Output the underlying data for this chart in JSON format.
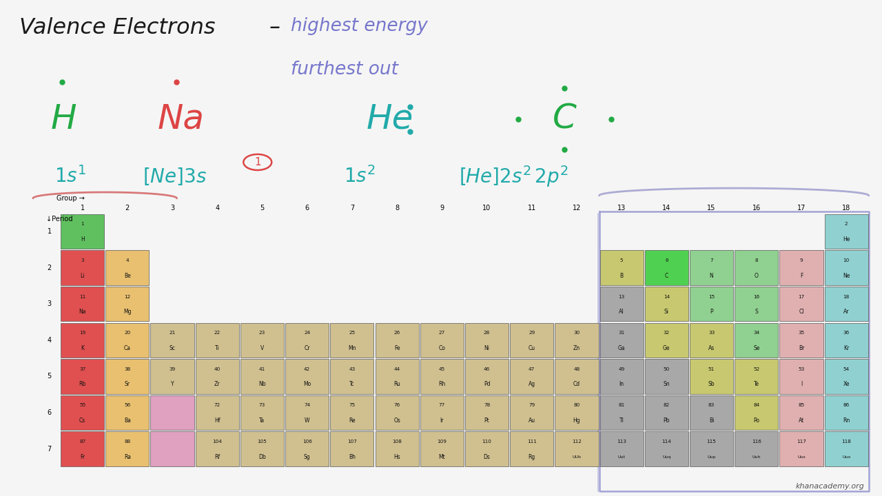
{
  "background_color": "#f5f5f5",
  "colors": {
    "alkali": "#e05050",
    "alkaline": "#e8c070",
    "transition": "#d0c090",
    "post_transition": "#a8a8a8",
    "metalloid": "#c8c870",
    "nonmetal": "#90d090",
    "halogen": "#e0b0b0",
    "noble": "#90d0d0",
    "highlighted_C": "#50d050",
    "highlighted_H": "#60c060",
    "pink_block": "#e0a0c0"
  },
  "elements": [
    {
      "num": 1,
      "sym": "H",
      "group": 1,
      "period": 1,
      "color": "highlighted_H"
    },
    {
      "num": 2,
      "sym": "He",
      "group": 18,
      "period": 1,
      "color": "noble"
    },
    {
      "num": 3,
      "sym": "Li",
      "group": 1,
      "period": 2,
      "color": "alkali"
    },
    {
      "num": 4,
      "sym": "Be",
      "group": 2,
      "period": 2,
      "color": "alkaline"
    },
    {
      "num": 5,
      "sym": "B",
      "group": 13,
      "period": 2,
      "color": "metalloid"
    },
    {
      "num": 6,
      "sym": "C",
      "group": 14,
      "period": 2,
      "color": "highlighted_C"
    },
    {
      "num": 7,
      "sym": "N",
      "group": 15,
      "period": 2,
      "color": "nonmetal"
    },
    {
      "num": 8,
      "sym": "O",
      "group": 16,
      "period": 2,
      "color": "nonmetal"
    },
    {
      "num": 9,
      "sym": "F",
      "group": 17,
      "period": 2,
      "color": "halogen"
    },
    {
      "num": 10,
      "sym": "Ne",
      "group": 18,
      "period": 2,
      "color": "noble"
    },
    {
      "num": 11,
      "sym": "Na",
      "group": 1,
      "period": 3,
      "color": "alkali"
    },
    {
      "num": 12,
      "sym": "Mg",
      "group": 2,
      "period": 3,
      "color": "alkaline"
    },
    {
      "num": 13,
      "sym": "Al",
      "group": 13,
      "period": 3,
      "color": "post_transition"
    },
    {
      "num": 14,
      "sym": "Si",
      "group": 14,
      "period": 3,
      "color": "metalloid"
    },
    {
      "num": 15,
      "sym": "P",
      "group": 15,
      "period": 3,
      "color": "nonmetal"
    },
    {
      "num": 16,
      "sym": "S",
      "group": 16,
      "period": 3,
      "color": "nonmetal"
    },
    {
      "num": 17,
      "sym": "Cl",
      "group": 17,
      "period": 3,
      "color": "halogen"
    },
    {
      "num": 18,
      "sym": "Ar",
      "group": 18,
      "period": 3,
      "color": "noble"
    },
    {
      "num": 19,
      "sym": "K",
      "group": 1,
      "period": 4,
      "color": "alkali"
    },
    {
      "num": 20,
      "sym": "Ca",
      "group": 2,
      "period": 4,
      "color": "alkaline"
    },
    {
      "num": 21,
      "sym": "Sc",
      "group": 3,
      "period": 4,
      "color": "transition"
    },
    {
      "num": 22,
      "sym": "Ti",
      "group": 4,
      "period": 4,
      "color": "transition"
    },
    {
      "num": 23,
      "sym": "V",
      "group": 5,
      "period": 4,
      "color": "transition"
    },
    {
      "num": 24,
      "sym": "Cr",
      "group": 6,
      "period": 4,
      "color": "transition"
    },
    {
      "num": 25,
      "sym": "Mn",
      "group": 7,
      "period": 4,
      "color": "transition"
    },
    {
      "num": 26,
      "sym": "Fe",
      "group": 8,
      "period": 4,
      "color": "transition"
    },
    {
      "num": 27,
      "sym": "Co",
      "group": 9,
      "period": 4,
      "color": "transition"
    },
    {
      "num": 28,
      "sym": "Ni",
      "group": 10,
      "period": 4,
      "color": "transition"
    },
    {
      "num": 29,
      "sym": "Cu",
      "group": 11,
      "period": 4,
      "color": "transition"
    },
    {
      "num": 30,
      "sym": "Zn",
      "group": 12,
      "period": 4,
      "color": "transition"
    },
    {
      "num": 31,
      "sym": "Ga",
      "group": 13,
      "period": 4,
      "color": "post_transition"
    },
    {
      "num": 32,
      "sym": "Ge",
      "group": 14,
      "period": 4,
      "color": "metalloid"
    },
    {
      "num": 33,
      "sym": "As",
      "group": 15,
      "period": 4,
      "color": "metalloid"
    },
    {
      "num": 34,
      "sym": "Se",
      "group": 16,
      "period": 4,
      "color": "nonmetal"
    },
    {
      "num": 35,
      "sym": "Br",
      "group": 17,
      "period": 4,
      "color": "halogen"
    },
    {
      "num": 36,
      "sym": "Kr",
      "group": 18,
      "period": 4,
      "color": "noble"
    },
    {
      "num": 37,
      "sym": "Rb",
      "group": 1,
      "period": 5,
      "color": "alkali"
    },
    {
      "num": 38,
      "sym": "Sr",
      "group": 2,
      "period": 5,
      "color": "alkaline"
    },
    {
      "num": 39,
      "sym": "Y",
      "group": 3,
      "period": 5,
      "color": "transition"
    },
    {
      "num": 40,
      "sym": "Zr",
      "group": 4,
      "period": 5,
      "color": "transition"
    },
    {
      "num": 41,
      "sym": "Nb",
      "group": 5,
      "period": 5,
      "color": "transition"
    },
    {
      "num": 42,
      "sym": "Mo",
      "group": 6,
      "period": 5,
      "color": "transition"
    },
    {
      "num": 43,
      "sym": "Tc",
      "group": 7,
      "period": 5,
      "color": "transition"
    },
    {
      "num": 44,
      "sym": "Ru",
      "group": 8,
      "period": 5,
      "color": "transition"
    },
    {
      "num": 45,
      "sym": "Rh",
      "group": 9,
      "period": 5,
      "color": "transition"
    },
    {
      "num": 46,
      "sym": "Pd",
      "group": 10,
      "period": 5,
      "color": "transition"
    },
    {
      "num": 47,
      "sym": "Ag",
      "group": 11,
      "period": 5,
      "color": "transition"
    },
    {
      "num": 48,
      "sym": "Cd",
      "group": 12,
      "period": 5,
      "color": "transition"
    },
    {
      "num": 49,
      "sym": "In",
      "group": 13,
      "period": 5,
      "color": "post_transition"
    },
    {
      "num": 50,
      "sym": "Sn",
      "group": 14,
      "period": 5,
      "color": "post_transition"
    },
    {
      "num": 51,
      "sym": "Sb",
      "group": 15,
      "period": 5,
      "color": "metalloid"
    },
    {
      "num": 52,
      "sym": "Te",
      "group": 16,
      "period": 5,
      "color": "metalloid"
    },
    {
      "num": 53,
      "sym": "I",
      "group": 17,
      "period": 5,
      "color": "halogen"
    },
    {
      "num": 54,
      "sym": "Xe",
      "group": 18,
      "period": 5,
      "color": "noble"
    },
    {
      "num": 55,
      "sym": "Cs",
      "group": 1,
      "period": 6,
      "color": "alkali"
    },
    {
      "num": 56,
      "sym": "Ba",
      "group": 2,
      "period": 6,
      "color": "alkaline"
    },
    {
      "num": 72,
      "sym": "Hf",
      "group": 4,
      "period": 6,
      "color": "transition"
    },
    {
      "num": 73,
      "sym": "Ta",
      "group": 5,
      "period": 6,
      "color": "transition"
    },
    {
      "num": 74,
      "sym": "W",
      "group": 6,
      "period": 6,
      "color": "transition"
    },
    {
      "num": 75,
      "sym": "Re",
      "group": 7,
      "period": 6,
      "color": "transition"
    },
    {
      "num": 76,
      "sym": "Os",
      "group": 8,
      "period": 6,
      "color": "transition"
    },
    {
      "num": 77,
      "sym": "Ir",
      "group": 9,
      "period": 6,
      "color": "transition"
    },
    {
      "num": 78,
      "sym": "Pt",
      "group": 10,
      "period": 6,
      "color": "transition"
    },
    {
      "num": 79,
      "sym": "Au",
      "group": 11,
      "period": 6,
      "color": "transition"
    },
    {
      "num": 80,
      "sym": "Hg",
      "group": 12,
      "period": 6,
      "color": "transition"
    },
    {
      "num": 81,
      "sym": "Tl",
      "group": 13,
      "period": 6,
      "color": "post_transition"
    },
    {
      "num": 82,
      "sym": "Pb",
      "group": 14,
      "period": 6,
      "color": "post_transition"
    },
    {
      "num": 83,
      "sym": "Bi",
      "group": 15,
      "period": 6,
      "color": "post_transition"
    },
    {
      "num": 84,
      "sym": "Po",
      "group": 16,
      "period": 6,
      "color": "metalloid"
    },
    {
      "num": 85,
      "sym": "At",
      "group": 17,
      "period": 6,
      "color": "halogen"
    },
    {
      "num": 86,
      "sym": "Rn",
      "group": 18,
      "period": 6,
      "color": "noble"
    },
    {
      "num": 87,
      "sym": "Fr",
      "group": 1,
      "period": 7,
      "color": "alkali"
    },
    {
      "num": 88,
      "sym": "Ra",
      "group": 2,
      "period": 7,
      "color": "alkaline"
    },
    {
      "num": 104,
      "sym": "Rf",
      "group": 4,
      "period": 7,
      "color": "transition"
    },
    {
      "num": 105,
      "sym": "Db",
      "group": 5,
      "period": 7,
      "color": "transition"
    },
    {
      "num": 106,
      "sym": "Sg",
      "group": 6,
      "period": 7,
      "color": "transition"
    },
    {
      "num": 107,
      "sym": "Bh",
      "group": 7,
      "period": 7,
      "color": "transition"
    },
    {
      "num": 108,
      "sym": "Hs",
      "group": 8,
      "period": 7,
      "color": "transition"
    },
    {
      "num": 109,
      "sym": "Mt",
      "group": 9,
      "period": 7,
      "color": "transition"
    },
    {
      "num": 110,
      "sym": "Ds",
      "group": 10,
      "period": 7,
      "color": "transition"
    },
    {
      "num": 111,
      "sym": "Rg",
      "group": 11,
      "period": 7,
      "color": "transition"
    },
    {
      "num": 112,
      "sym": "UUb",
      "group": 12,
      "period": 7,
      "color": "transition"
    },
    {
      "num": 113,
      "sym": "Uut",
      "group": 13,
      "period": 7,
      "color": "post_transition"
    },
    {
      "num": 114,
      "sym": "Uuq",
      "group": 14,
      "period": 7,
      "color": "post_transition"
    },
    {
      "num": 115,
      "sym": "Uup",
      "group": 15,
      "period": 7,
      "color": "post_transition"
    },
    {
      "num": 116,
      "sym": "Uuh",
      "group": 16,
      "period": 7,
      "color": "post_transition"
    },
    {
      "num": 117,
      "sym": "Uus",
      "group": 17,
      "period": 7,
      "color": "halogen"
    },
    {
      "num": 118,
      "sym": "Uuo",
      "group": 18,
      "period": 7,
      "color": "noble"
    }
  ],
  "pink_placeholders": [
    {
      "group": 3,
      "period": 6
    },
    {
      "group": 3,
      "period": 7
    }
  ],
  "group_numbers": [
    1,
    2,
    3,
    4,
    5,
    6,
    7,
    8,
    9,
    10,
    11,
    12,
    13,
    14,
    15,
    16,
    17,
    18
  ],
  "period_numbers": [
    1,
    2,
    3,
    4,
    5,
    6,
    7
  ],
  "title_text": "Valence Electrons",
  "subtitle1": "highest energy",
  "subtitle2": "furthest out",
  "subtitle_color": "#7777cc",
  "title_color": "#1a1a1a",
  "h_color": "#22aa44",
  "na_color": "#dd4444",
  "he_color": "#22aaaa",
  "c_color": "#22aa44",
  "formula_color": "#22aaaa",
  "circled_color": "#dd4444",
  "watermark": "khanacademy.org"
}
